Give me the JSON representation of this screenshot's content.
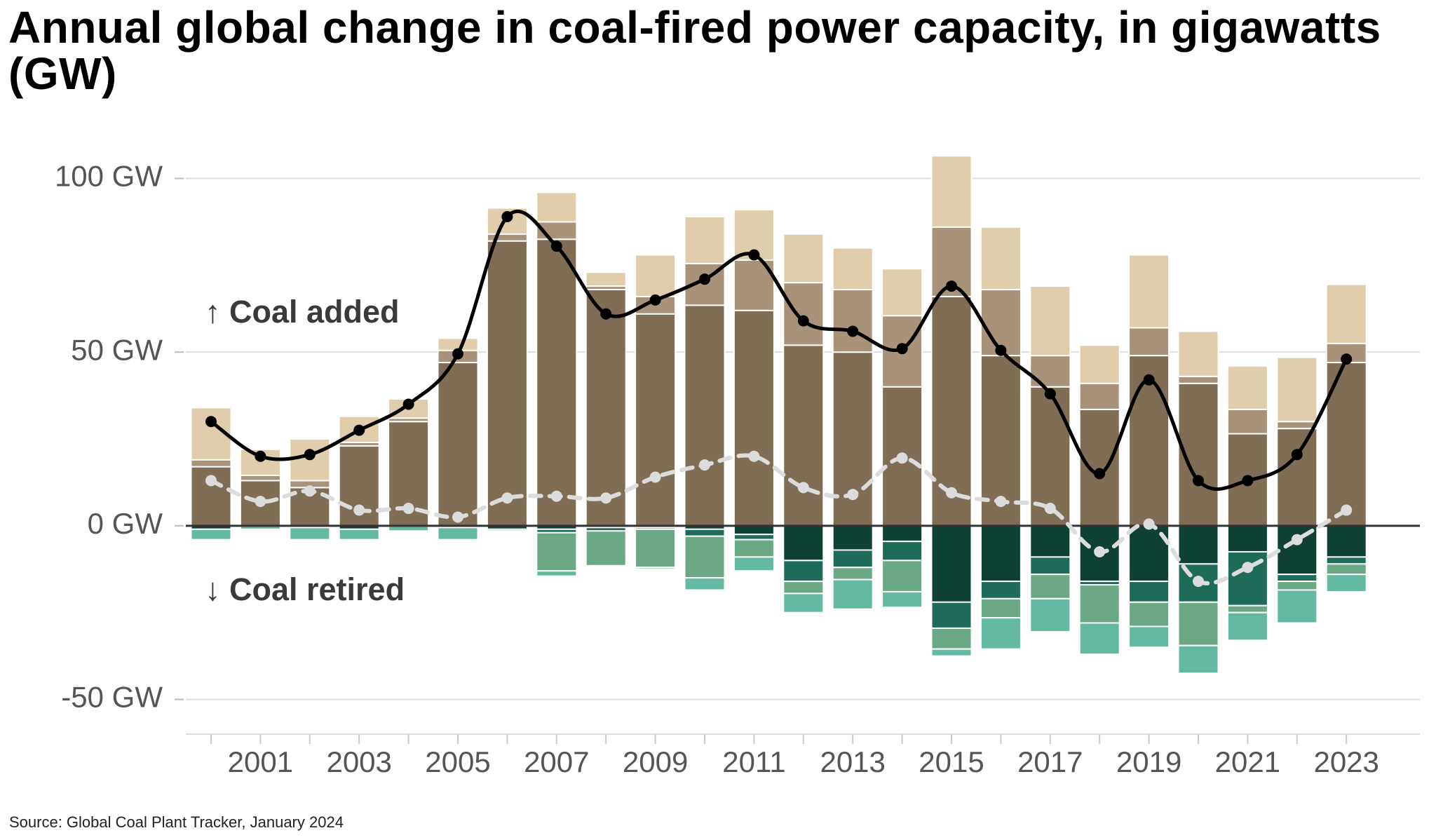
{
  "chart_data": {
    "type": "bar",
    "title": "Annual global change in coal-fired power capacity, in gigawatts (GW)",
    "annotations": [
      "↑ Coal added",
      "↓ Coal retired"
    ],
    "source": "Source: Global Coal Plant Tracker, January 2024",
    "categories": [
      null,
      "2001",
      null,
      "2003",
      null,
      "2005",
      null,
      "2007",
      null,
      "2009",
      null,
      "2011",
      null,
      "2013",
      null,
      "2015",
      null,
      "2017",
      null,
      "2019",
      null,
      "2021",
      null,
      "2023"
    ],
    "ylim": [
      -60,
      110
    ],
    "yticks": [
      {
        "value": 100,
        "label": "100 GW"
      },
      {
        "value": 50,
        "label": "50 GW"
      },
      {
        "value": 0,
        "label": "0 GW"
      },
      {
        "value": -50,
        "label": "-50 GW"
      }
    ],
    "grid": true,
    "series": [
      {
        "color": "#7f6d55",
        "values": [
          17,
          13,
          11,
          23,
          30,
          47,
          82,
          82.5,
          68,
          61,
          63.5,
          62,
          52,
          50,
          40,
          66,
          49,
          40,
          33.5,
          49,
          41,
          26.5,
          28,
          47
        ]
      },
      {
        "color": "#a8927a",
        "values": [
          2,
          1.5,
          2,
          1,
          1,
          3.5,
          2,
          5,
          1,
          5,
          12,
          14.5,
          18,
          18,
          20.5,
          20,
          19,
          9,
          7.5,
          8,
          2,
          7,
          2,
          5.5
        ]
      },
      {
        "color": "#dfcdab",
        "values": [
          15,
          7.5,
          12,
          7.5,
          5.5,
          3.5,
          7.5,
          8.5,
          4,
          12,
          13.5,
          14.5,
          14,
          12,
          13.5,
          20.5,
          18,
          20,
          11,
          21,
          13,
          12.5,
          18.5,
          17
        ]
      },
      {
        "color": "#0e4034",
        "values": [
          -1,
          0,
          -0.5,
          -1,
          0,
          -0.5,
          -1,
          -1,
          -0.5,
          -0.5,
          -1,
          -2.5,
          -10,
          -7,
          -4.5,
          -22,
          -16,
          -9,
          -16,
          -16,
          -11,
          -7.5,
          -14,
          -9
        ]
      },
      {
        "color": "#1f6b5a",
        "values": [
          0,
          0,
          0,
          0,
          0,
          0,
          0,
          -1,
          -1,
          -0.5,
          -2,
          -1.5,
          -6,
          -5,
          -5.5,
          -7.5,
          -5,
          -5,
          -1,
          -6,
          -11,
          -15.5,
          -2,
          -2
        ]
      },
      {
        "color": "#6aa886",
        "values": [
          0,
          0,
          0,
          0,
          0,
          0,
          0,
          -11,
          -10,
          -11,
          -12,
          -5,
          -3.5,
          -3.5,
          -9,
          -6,
          -5.5,
          -7,
          -11,
          -7,
          -12.5,
          -2,
          -2.5,
          -3
        ]
      },
      {
        "color": "#63b9a2",
        "values": [
          -3,
          -1,
          -3.5,
          -3,
          -1.5,
          -3.5,
          -0.5,
          -1.5,
          0,
          -0.5,
          -3.5,
          -4,
          -5.5,
          -8.5,
          -4.5,
          -2,
          -9,
          -9.5,
          -9,
          -6,
          -8,
          -8,
          -9.5,
          -5
        ]
      }
    ],
    "lines": [
      {
        "color": "#000000",
        "dashed": false,
        "values": [
          30,
          20,
          20.5,
          27.5,
          35,
          49.5,
          89,
          80.5,
          61,
          65,
          71,
          78,
          59,
          56,
          51,
          69,
          50.5,
          38,
          15,
          42,
          13,
          13,
          20.5,
          48
        ]
      },
      {
        "color": "#dcdcdc",
        "dashed": true,
        "values": [
          13,
          7,
          10,
          4.5,
          5,
          2.5,
          8,
          8.5,
          8,
          14,
          17.5,
          20,
          11,
          9,
          19.5,
          9.5,
          7,
          5,
          -7.5,
          0.5,
          -16,
          -12,
          -4,
          4.5
        ]
      }
    ]
  }
}
